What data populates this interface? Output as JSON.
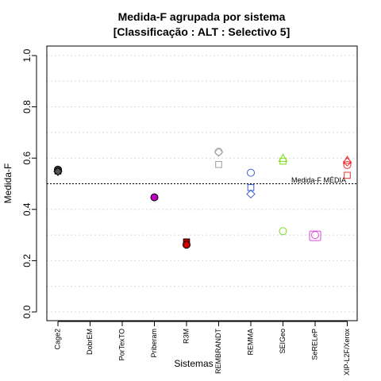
{
  "chart_data": {
    "type": "scatter",
    "title": "Medida-F agrupada por sistema",
    "subtitle": "[Classificação : ALT : Selectivo 5]",
    "xlabel": "Sistemas",
    "ylabel": "Medida-F",
    "ylim": [
      0,
      1
    ],
    "yticks": [
      "0.0",
      "0.2",
      "0.4",
      "0.6",
      "0.8",
      "1.0"
    ],
    "grid": "horizontal dotted",
    "categories": [
      "Cage2",
      "DobrEM",
      "PorTexTO",
      "Priberam",
      "R3M",
      "REMBRANDT",
      "REMMA",
      "SEIGeo",
      "SeRELeP",
      "XIP-L2F/Xerox"
    ],
    "reference_line": {
      "value": 0.5,
      "label": "Medida-F MÉDIA"
    },
    "points": [
      {
        "category": "Cage2",
        "y": 0.555,
        "shape": "circle",
        "filled": true,
        "color": "#555555"
      },
      {
        "category": "Cage2",
        "y": 0.55,
        "shape": "square",
        "filled": true,
        "color": "#555555"
      },
      {
        "category": "Cage2",
        "y": 0.548,
        "shape": "diamond",
        "filled": true,
        "color": "#555555"
      },
      {
        "category": "Priberam",
        "y": 0.447,
        "shape": "circle",
        "filled": true,
        "color": "#c000c0"
      },
      {
        "category": "R3M",
        "y": 0.273,
        "shape": "square",
        "filled": true,
        "color": "#cc0000"
      },
      {
        "category": "R3M",
        "y": 0.262,
        "shape": "circle",
        "filled": true,
        "color": "#cc0000"
      },
      {
        "category": "REMBRANDT",
        "y": 0.625,
        "shape": "circle",
        "filled": false,
        "color": "#9e9e9e"
      },
      {
        "category": "REMBRANDT",
        "y": 0.623,
        "shape": "diamond",
        "filled": false,
        "color": "#9e9e9e"
      },
      {
        "category": "REMBRANDT",
        "y": 0.575,
        "shape": "square",
        "filled": false,
        "color": "#9e9e9e"
      },
      {
        "category": "REMMA",
        "y": 0.543,
        "shape": "circle",
        "filled": false,
        "color": "#3b5bdb"
      },
      {
        "category": "REMMA",
        "y": 0.485,
        "shape": "square",
        "filled": false,
        "color": "#3b5bdb"
      },
      {
        "category": "REMMA",
        "y": 0.46,
        "shape": "diamond",
        "filled": false,
        "color": "#3b5bdb"
      },
      {
        "category": "SEIGeo",
        "y": 0.598,
        "shape": "triangle",
        "filled": false,
        "color": "#7cdc1a"
      },
      {
        "category": "SEIGeo",
        "y": 0.588,
        "shape": "square",
        "filled": false,
        "color": "#7cdc1a"
      },
      {
        "category": "SEIGeo",
        "y": 0.315,
        "shape": "circle",
        "filled": false,
        "color": "#7cdc1a"
      },
      {
        "category": "SeRELeP",
        "y": 0.3,
        "shape": "circle",
        "filled": false,
        "color": "#d64fd6"
      },
      {
        "category": "SeRELeP",
        "y": 0.297,
        "shape": "square-large",
        "filled": false,
        "color": "#d64fd6"
      },
      {
        "category": "XIP-L2F/Xerox",
        "y": 0.59,
        "shape": "triangle",
        "filled": false,
        "color": "#ee3333"
      },
      {
        "category": "XIP-L2F/Xerox",
        "y": 0.585,
        "shape": "diamond",
        "filled": false,
        "color": "#ee3333"
      },
      {
        "category": "XIP-L2F/Xerox",
        "y": 0.573,
        "shape": "circle",
        "filled": false,
        "color": "#ee3333"
      },
      {
        "category": "XIP-L2F/Xerox",
        "y": 0.533,
        "shape": "square",
        "filled": false,
        "color": "#ee3333"
      }
    ]
  }
}
